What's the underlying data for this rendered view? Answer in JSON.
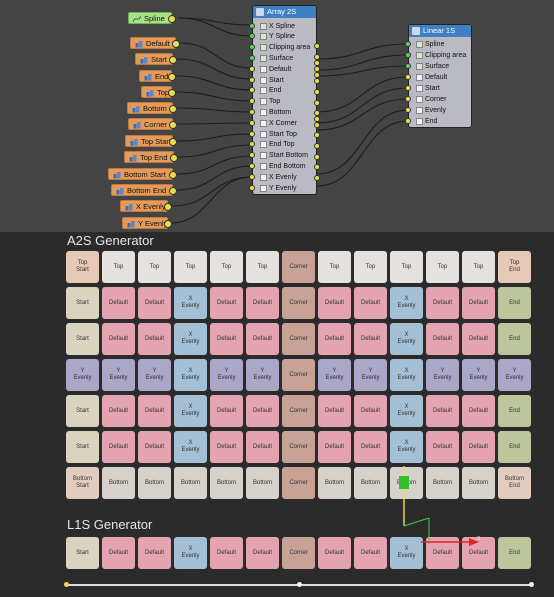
{
  "param_nodes": [
    {
      "id": "spline",
      "label": "Spline",
      "kind": "green",
      "icon": "spline-icon"
    },
    {
      "id": "default",
      "label": "Default",
      "kind": "orange",
      "icon": "param-icon"
    },
    {
      "id": "start",
      "label": "Start",
      "kind": "orange",
      "icon": "param-icon"
    },
    {
      "id": "end",
      "label": "End",
      "kind": "orange",
      "icon": "param-icon"
    },
    {
      "id": "top",
      "label": "Top",
      "kind": "orange",
      "icon": "param-icon"
    },
    {
      "id": "bottom",
      "label": "Bottom",
      "kind": "orange",
      "icon": "param-icon"
    },
    {
      "id": "corner",
      "label": "Corner",
      "kind": "orange",
      "icon": "param-icon"
    },
    {
      "id": "top-start",
      "label": "Top Start",
      "kind": "orange",
      "icon": "param-icon"
    },
    {
      "id": "top-end",
      "label": "Top End",
      "kind": "orange",
      "icon": "param-icon"
    },
    {
      "id": "bottom-start",
      "label": "Bottom Start",
      "kind": "orange",
      "icon": "param-icon"
    },
    {
      "id": "bottom-end",
      "label": "Bottom End",
      "kind": "orange",
      "icon": "param-icon"
    },
    {
      "id": "x-evenly",
      "label": "X Evenly",
      "kind": "orange",
      "icon": "param-icon"
    },
    {
      "id": "y-evenly",
      "label": "Y Evenly",
      "kind": "orange",
      "icon": "param-icon"
    }
  ],
  "array_node": {
    "title": "Array 2S",
    "ports": [
      "X Spline",
      "Y Spline",
      "Clipping area",
      "Surface",
      "Default",
      "Start",
      "End",
      "Top",
      "Bottom",
      "X Corner",
      "Start Top",
      "End Top",
      "Start Bottom",
      "End Bottom",
      "X Evenly",
      "Y Evenly"
    ]
  },
  "linear_node": {
    "title": "Linear 1S",
    "ports": [
      "Spline",
      "Clipping area",
      "Surface",
      "Default",
      "Start",
      "Corner",
      "Evenly",
      "End"
    ]
  },
  "a2s": {
    "title": "A2S Generator",
    "rows": [
      [
        [
          "Top\nStart",
          "topstart"
        ],
        [
          "Top",
          "top"
        ],
        [
          "Top",
          "top"
        ],
        [
          "Top",
          "top"
        ],
        [
          "Top",
          "top"
        ],
        [
          "Top",
          "top"
        ],
        [
          "Corner",
          "corner"
        ],
        [
          "Top",
          "top"
        ],
        [
          "Top",
          "top"
        ],
        [
          "Top",
          "top"
        ],
        [
          "Top",
          "top"
        ],
        [
          "Top",
          "top"
        ],
        [
          "Top\nEnd",
          "topstart"
        ]
      ],
      [
        [
          "Start",
          "start"
        ],
        [
          "Default",
          "default"
        ],
        [
          "Default",
          "default"
        ],
        [
          "X\nEvenly",
          "xevenly"
        ],
        [
          "Default",
          "default"
        ],
        [
          "Default",
          "default"
        ],
        [
          "Corner",
          "corner"
        ],
        [
          "Default",
          "default"
        ],
        [
          "Default",
          "default"
        ],
        [
          "X\nEvenly",
          "xevenly"
        ],
        [
          "Default",
          "default"
        ],
        [
          "Default",
          "default"
        ],
        [
          "End",
          "end"
        ]
      ],
      [
        [
          "Start",
          "start"
        ],
        [
          "Default",
          "default"
        ],
        [
          "Default",
          "default"
        ],
        [
          "X\nEvenly",
          "xevenly"
        ],
        [
          "Default",
          "default"
        ],
        [
          "Default",
          "default"
        ],
        [
          "Corner",
          "corner"
        ],
        [
          "Default",
          "default"
        ],
        [
          "Default",
          "default"
        ],
        [
          "X\nEvenly",
          "xevenly"
        ],
        [
          "Default",
          "default"
        ],
        [
          "Default",
          "default"
        ],
        [
          "End",
          "end"
        ]
      ],
      [
        [
          "Y\nEvenly",
          "yevenly"
        ],
        [
          "Y\nEvenly",
          "yevenly"
        ],
        [
          "Y\nEvenly",
          "yevenly"
        ],
        [
          "X\nEvenly",
          "xevenly"
        ],
        [
          "Y\nEvenly",
          "yevenly"
        ],
        [
          "Y\nEvenly",
          "yevenly"
        ],
        [
          "Corner",
          "corner"
        ],
        [
          "Y\nEvenly",
          "yevenly"
        ],
        [
          "Y\nEvenly",
          "yevenly"
        ],
        [
          "X\nEvenly",
          "xevenly"
        ],
        [
          "Y\nEvenly",
          "yevenly"
        ],
        [
          "Y\nEvenly",
          "yevenly"
        ],
        [
          "Y\nEvenly",
          "yevenly"
        ]
      ],
      [
        [
          "Start",
          "start"
        ],
        [
          "Default",
          "default"
        ],
        [
          "Default",
          "default"
        ],
        [
          "X\nEvenly",
          "xevenly"
        ],
        [
          "Default",
          "default"
        ],
        [
          "Default",
          "default"
        ],
        [
          "Corner",
          "corner"
        ],
        [
          "Default",
          "default"
        ],
        [
          "Default",
          "default"
        ],
        [
          "X\nEvenly",
          "xevenly"
        ],
        [
          "Default",
          "default"
        ],
        [
          "Default",
          "default"
        ],
        [
          "End",
          "end"
        ]
      ],
      [
        [
          "Start",
          "start"
        ],
        [
          "Default",
          "default"
        ],
        [
          "Default",
          "default"
        ],
        [
          "X\nEvenly",
          "xevenly"
        ],
        [
          "Default",
          "default"
        ],
        [
          "Default",
          "default"
        ],
        [
          "Corner",
          "corner"
        ],
        [
          "Default",
          "default"
        ],
        [
          "Default",
          "default"
        ],
        [
          "X\nEvenly",
          "xevenly"
        ],
        [
          "Default",
          "default"
        ],
        [
          "Default",
          "default"
        ],
        [
          "End",
          "end"
        ]
      ],
      [
        [
          "Bottom\nStart",
          "bottomstart"
        ],
        [
          "Bottom",
          "bottom"
        ],
        [
          "Bottom",
          "bottom"
        ],
        [
          "Bottom",
          "bottom"
        ],
        [
          "Bottom",
          "bottom"
        ],
        [
          "Bottom",
          "bottom"
        ],
        [
          "Corner",
          "corner"
        ],
        [
          "Bottom",
          "bottom"
        ],
        [
          "Bottom",
          "bottom"
        ],
        [
          "Bottom",
          "bottom"
        ],
        [
          "Bottom",
          "bottom"
        ],
        [
          "Bottom",
          "bottom"
        ],
        [
          "Bottom\nEnd",
          "bottomstart"
        ]
      ]
    ]
  },
  "l1s": {
    "title": "L1S Generator",
    "row": [
      [
        "Start",
        "start"
      ],
      [
        "Default",
        "default"
      ],
      [
        "Default",
        "default"
      ],
      [
        "X\nEvenly",
        "xevenly"
      ],
      [
        "Default",
        "default"
      ],
      [
        "Default",
        "default"
      ],
      [
        "Corner",
        "corner"
      ],
      [
        "Default",
        "default"
      ],
      [
        "Default",
        "default"
      ],
      [
        "X\nEvenly",
        "xevenly"
      ],
      [
        "Default",
        "default"
      ],
      [
        "Default",
        "default"
      ],
      [
        "End",
        "end"
      ]
    ]
  },
  "gizmo": {
    "x_label": "x"
  }
}
